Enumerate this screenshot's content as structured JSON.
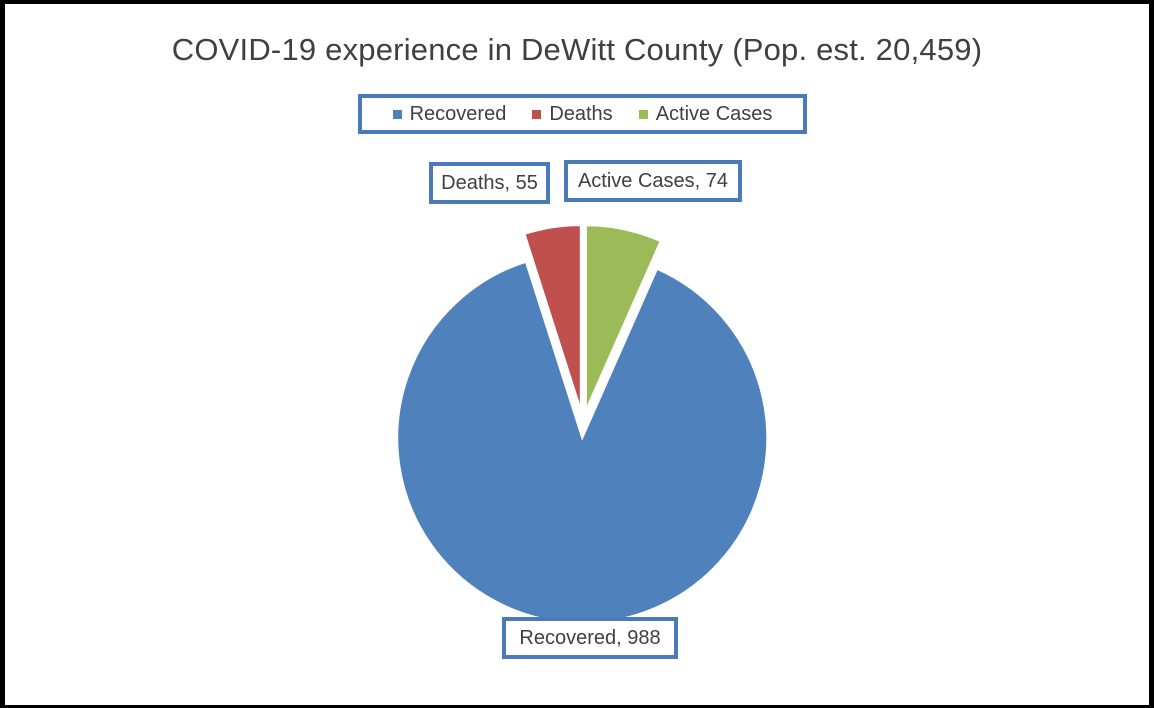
{
  "chart_data": {
    "type": "pie",
    "title": "COVID-19 experience in DeWitt County (Pop. est. 20,459)",
    "slices": [
      {
        "name": "Recovered",
        "value": 988,
        "color": "#4f81bd",
        "label": "Recovered, 988"
      },
      {
        "name": "Deaths",
        "value": 55,
        "color": "#c0504d",
        "label": "Deaths, 55"
      },
      {
        "name": "Active Cases",
        "value": 74,
        "color": "#9bbb59",
        "label": "Active Cases, 74"
      }
    ],
    "legend": {
      "position": "top",
      "entries": [
        "Recovered",
        "Deaths",
        "Active Cases"
      ]
    },
    "exploded": true
  }
}
